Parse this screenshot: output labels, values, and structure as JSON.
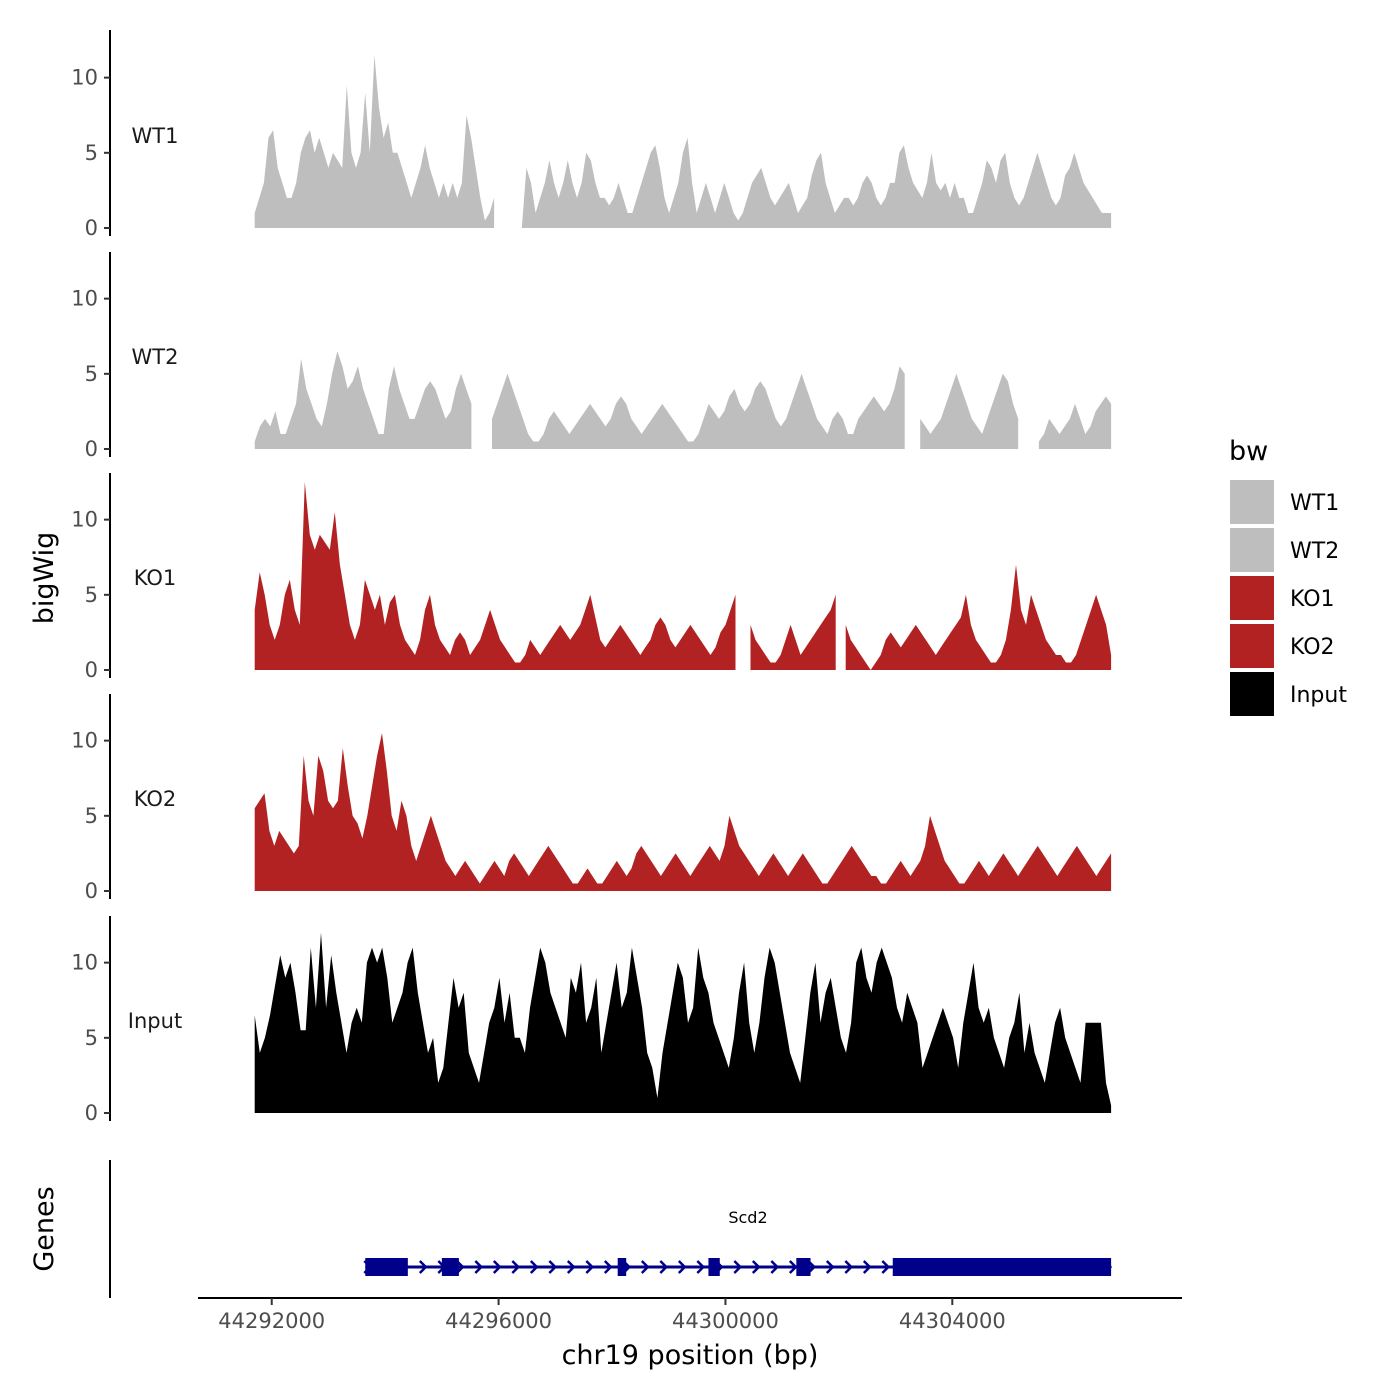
{
  "chart_data": {
    "type": "area",
    "chromosome": "chr19",
    "xlabel": "chr19 position (bp)",
    "ylabel": "bigWig",
    "genes_label": "Genes",
    "xlim": [
      44290700,
      44308050
    ],
    "x_ticks": [
      44292000,
      44296000,
      44300000,
      44304000
    ],
    "x_tick_labels": [
      "44292000",
      "44296000",
      "44300000",
      "44304000"
    ],
    "ylim": [
      0,
      13.5
    ],
    "y_ticks": [
      0,
      5,
      10
    ],
    "y_tick_labels": [
      "0",
      "5",
      "10"
    ],
    "legend": {
      "title": "bw",
      "entries": [
        {
          "label": "WT1",
          "color": "#bebebe"
        },
        {
          "label": "WT2",
          "color": "#bebebe"
        },
        {
          "label": "KO1",
          "color": "#b22222"
        },
        {
          "label": "KO2",
          "color": "#b22222"
        },
        {
          "label": "Input",
          "color": "#000000"
        }
      ]
    },
    "series": [
      {
        "name": "WT1",
        "color": "#bebebe",
        "x_start": 44291700,
        "x_end": 44306800,
        "values": [
          1,
          2,
          3,
          6,
          6.5,
          4,
          3,
          2,
          2,
          3,
          5,
          6,
          6.5,
          5,
          6,
          5,
          4,
          5,
          4.5,
          4,
          9.5,
          5,
          4,
          5,
          9,
          5,
          11.5,
          8,
          6,
          7,
          5,
          5,
          4,
          3,
          2,
          3,
          4,
          5.5,
          4,
          3,
          2,
          3,
          2,
          3,
          2,
          3,
          7.5,
          6,
          4,
          2,
          0.5,
          1,
          2,
          1,
          0,
          0,
          0,
          0,
          0,
          4,
          3,
          1,
          2,
          3,
          4.5,
          3,
          2,
          3,
          4.5,
          3,
          2,
          3,
          5,
          4.5,
          3,
          2,
          2,
          1.5,
          2,
          3,
          2,
          1,
          1,
          2,
          3,
          4,
          5,
          5.5,
          4,
          2,
          1,
          2,
          3,
          5,
          6,
          3,
          1,
          2,
          3,
          2,
          1,
          2,
          3,
          2,
          1,
          0.5,
          1,
          2,
          3,
          3.5,
          4,
          3,
          2,
          1.5,
          2,
          2.5,
          3,
          2,
          1,
          1.5,
          2,
          3.5,
          4.5,
          5,
          3,
          2,
          1,
          1.5,
          2,
          2,
          1.5,
          2,
          3,
          3.5,
          3,
          2,
          1.5,
          2,
          3,
          3,
          5,
          5.5,
          4,
          3,
          2.5,
          2,
          3,
          5,
          3,
          2.5,
          3,
          2,
          3,
          2,
          2,
          1,
          1,
          2,
          3,
          4.5,
          4,
          3,
          4.5,
          5,
          3,
          2,
          1.5,
          2,
          3,
          4,
          5,
          4,
          3,
          2,
          1.5,
          2,
          3.5,
          4,
          5,
          4,
          3,
          2.5,
          2,
          1.5,
          1,
          1,
          1
        ],
        "gaps": [
          [
            44296000,
            44296250
          ]
        ]
      },
      {
        "name": "WT2",
        "color": "#bebebe",
        "x_start": 44291700,
        "x_end": 44306800,
        "values": [
          0.5,
          1.5,
          2,
          1.5,
          2.5,
          1,
          1,
          2,
          3,
          6,
          4,
          3,
          2,
          1.5,
          3,
          5,
          6.5,
          5.5,
          4,
          4.5,
          5.5,
          4,
          3,
          2,
          1,
          1,
          4,
          5.5,
          4,
          3,
          2,
          2,
          3,
          4,
          4.5,
          4,
          3,
          2,
          2.5,
          4,
          5,
          4,
          3,
          2,
          1.5,
          1,
          2,
          3,
          4,
          5,
          4,
          3,
          2,
          1,
          0.5,
          0.5,
          1,
          2,
          2.5,
          2,
          1.5,
          1,
          1.5,
          2,
          2.5,
          3,
          2.5,
          2,
          1.5,
          2,
          3,
          3.5,
          3,
          2,
          1.5,
          1,
          1.5,
          2,
          2.5,
          3,
          2.5,
          2,
          1.5,
          1,
          0.5,
          0.5,
          1,
          2,
          3,
          2.5,
          2,
          2.5,
          3.5,
          4,
          3,
          2.5,
          3,
          4,
          4.5,
          4,
          3,
          2,
          1.5,
          2,
          3,
          4,
          5,
          4,
          3,
          2,
          1.5,
          1,
          2,
          2.5,
          2,
          1,
          1,
          2,
          2.5,
          3,
          3.5,
          3,
          2.5,
          3,
          4,
          5.5,
          5,
          4,
          3,
          2,
          1.5,
          1,
          1.5,
          2,
          3,
          4,
          5,
          4,
          3,
          2,
          1.5,
          1,
          2,
          3,
          4,
          5,
          4.5,
          3,
          2,
          1.5,
          1,
          0,
          0.5,
          1,
          2,
          1.5,
          1,
          1.5,
          2,
          3,
          2,
          1,
          1.5,
          2.5,
          3,
          3.5,
          3
        ],
        "gaps": [
          [
            44295600,
            44295850
          ],
          [
            44303250,
            44303350
          ],
          [
            44305250,
            44305450
          ]
        ]
      },
      {
        "name": "KO1",
        "color": "#b22222",
        "x_start": 44291700,
        "x_end": 44306800,
        "values": [
          4,
          6.5,
          5,
          3,
          2,
          3,
          5,
          6,
          4,
          3,
          12.5,
          9,
          8,
          9,
          8.5,
          8,
          10.5,
          7,
          5,
          3,
          2,
          3,
          6,
          5,
          4,
          5,
          3,
          4.5,
          5,
          3,
          2,
          1.5,
          1,
          2,
          4,
          5,
          3,
          2,
          1.5,
          1,
          2,
          2.5,
          2,
          1,
          1.5,
          2,
          3,
          4,
          3,
          2,
          1.5,
          1,
          0.5,
          0.5,
          1,
          2,
          1.5,
          1,
          1.5,
          2,
          2.5,
          3,
          2.5,
          2,
          2.5,
          3,
          4,
          5,
          3.5,
          2,
          1.5,
          2,
          2.5,
          3,
          2.5,
          2,
          1.5,
          1,
          1.5,
          2,
          3,
          3.5,
          3,
          2,
          1.5,
          2,
          2.5,
          3,
          2.5,
          2,
          1.5,
          1,
          1.5,
          2.5,
          3,
          4,
          5,
          5.5,
          4,
          3,
          2,
          1.5,
          1,
          0.5,
          0.5,
          1,
          2,
          3,
          2,
          1,
          1.5,
          2,
          2.5,
          3,
          3.5,
          4,
          5,
          5.5,
          3,
          2,
          1.5,
          1,
          0.5,
          0,
          0.5,
          1,
          2,
          2.5,
          2,
          1.5,
          2,
          2.5,
          3,
          2.5,
          2,
          1.5,
          1,
          1.5,
          2,
          2.5,
          3,
          3.5,
          5,
          3,
          2,
          1.5,
          1,
          0.5,
          0.5,
          1,
          2,
          4,
          7,
          4,
          3,
          5,
          4,
          3,
          2,
          1.5,
          1,
          1,
          0.5,
          0.5,
          1,
          2,
          3,
          4,
          5,
          4,
          3,
          1
        ],
        "gaps": [
          [
            44300200,
            44300400
          ],
          [
            44302000,
            44302100
          ]
        ]
      },
      {
        "name": "KO2",
        "color": "#b22222",
        "x_start": 44291700,
        "x_end": 44306800,
        "values": [
          5.5,
          6,
          6.5,
          4,
          3,
          4,
          3.5,
          3,
          2.5,
          3,
          9,
          6,
          5,
          9,
          8,
          6,
          5.5,
          6,
          9.5,
          7,
          5,
          4.5,
          3.5,
          5,
          7,
          9,
          10.5,
          8,
          5,
          4,
          6,
          5,
          3,
          2,
          3,
          4,
          5,
          4,
          3,
          2,
          1.5,
          1,
          1.5,
          2,
          1.5,
          1,
          0.5,
          1,
          1.5,
          2,
          1.5,
          1,
          2,
          2.5,
          2,
          1.5,
          1,
          1.5,
          2,
          2.5,
          3,
          2.5,
          2,
          1.5,
          1,
          0.5,
          0.5,
          1,
          1.5,
          1,
          0.5,
          0.5,
          1,
          1.5,
          2,
          1.5,
          1,
          1.5,
          2.5,
          3,
          2.5,
          2,
          1.5,
          1,
          1.5,
          2,
          2.5,
          2,
          1.5,
          1,
          1.5,
          2,
          2.5,
          3,
          2.5,
          2,
          3,
          5,
          4,
          3,
          2.5,
          2,
          1.5,
          1,
          1.5,
          2,
          2.5,
          2,
          1.5,
          1,
          1.5,
          2,
          2.5,
          2,
          1.5,
          1,
          0.5,
          0.5,
          1,
          1.5,
          2,
          2.5,
          3,
          2.5,
          2,
          1.5,
          1,
          1,
          0.5,
          0.5,
          1,
          1.5,
          2,
          1.5,
          1,
          1.5,
          2,
          3,
          5,
          4,
          3,
          2,
          1.5,
          1,
          0.5,
          0.5,
          1,
          1.5,
          2,
          1.5,
          1,
          1.5,
          2,
          2.5,
          2,
          1.5,
          1,
          1.5,
          2,
          2.5,
          3,
          2.5,
          2,
          1.5,
          1,
          1.5,
          2,
          2.5,
          3,
          2.5,
          2,
          1.5,
          1,
          1.5,
          2,
          2.5
        ],
        "gaps": []
      },
      {
        "name": "Input",
        "color": "#000000",
        "x_start": 44291700,
        "x_end": 44306800,
        "values": [
          6.5,
          4,
          5,
          6.5,
          8.5,
          10.5,
          9,
          10,
          8,
          5.5,
          5.5,
          11,
          7,
          12,
          7,
          10.5,
          8,
          6,
          4,
          6,
          7,
          6,
          10,
          11,
          10,
          11,
          9,
          6,
          7,
          8,
          10,
          11,
          8,
          6,
          4,
          5,
          2,
          3,
          6,
          9,
          7,
          8,
          4,
          3,
          2,
          4,
          6,
          7,
          9,
          6,
          8,
          5,
          5,
          4,
          7,
          9,
          11,
          10,
          8,
          7,
          6,
          5,
          9,
          8,
          10,
          6,
          7,
          9,
          4,
          6,
          8,
          10,
          7,
          8,
          11,
          9,
          7,
          4,
          3,
          1,
          4,
          6,
          8,
          10,
          9,
          6,
          7,
          11,
          9,
          8,
          6,
          5,
          4,
          3,
          5,
          8,
          10,
          6,
          4,
          6,
          9,
          11,
          10,
          8,
          6,
          4,
          3,
          2,
          5,
          8,
          10,
          6,
          8,
          9,
          7,
          5,
          4,
          6,
          10,
          11,
          9,
          8,
          10,
          11,
          10,
          9,
          7,
          6,
          8,
          7,
          6,
          3,
          4,
          5,
          6,
          7,
          6,
          5,
          3,
          6,
          8,
          10,
          7,
          6,
          7,
          5,
          4,
          3,
          5,
          6,
          8,
          4,
          6,
          4,
          3,
          2,
          4,
          6,
          7,
          5,
          4,
          3,
          2,
          6,
          6,
          6,
          6,
          2,
          0.5
        ]
      },
      {
        "name": "gene-Scd2",
        "strand": "+"
      }
    ],
    "genes": [
      {
        "name": "Scd2",
        "strand": "+",
        "start": 44293650,
        "end": 44306800,
        "exons": [
          [
            44293650,
            44294400
          ],
          [
            44295000,
            44295300
          ],
          [
            44298100,
            44298250
          ],
          [
            44299700,
            44299900
          ],
          [
            44301250,
            44301500
          ],
          [
            44302950,
            44306800
          ]
        ]
      }
    ]
  }
}
